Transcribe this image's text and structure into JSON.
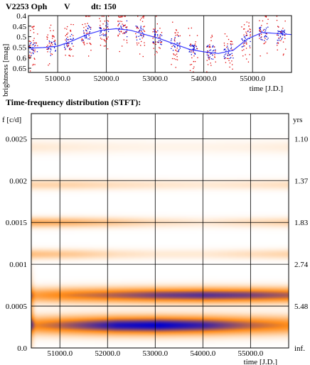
{
  "chart_data": [
    {
      "type": "scatter",
      "title": {
        "star": "V2253 Oph",
        "band": "V",
        "dt_label": "dt: 150"
      },
      "xlabel": "time [J.D.]",
      "ylabel": "brightness [mag]",
      "xlim": [
        50400,
        55800
      ],
      "ylim": [
        0.4,
        0.67
      ],
      "y_inverted": false,
      "x_ticks": [
        51000,
        52000,
        53000,
        54000,
        55000
      ],
      "x_tick_labels": [
        "51000.0",
        "52000.0",
        "53000.0",
        "54000.0",
        "55000.0"
      ],
      "y_ticks": [
        0.4,
        0.45,
        0.5,
        0.55,
        0.6,
        0.65
      ],
      "y_tick_labels": [
        "0.4",
        "0.45",
        "0.5",
        "0.55",
        "0.6",
        "0.65"
      ],
      "grid": "vertical",
      "series": [
        {
          "color": "#e00000",
          "style": "points"
        },
        {
          "color": "#0000cc",
          "style": "points"
        },
        {
          "color": "#3a3aff",
          "style": "line",
          "x": [
            50400,
            50700,
            51000,
            51300,
            51600,
            51900,
            52200,
            52500,
            52800,
            53100,
            53400,
            53700,
            54000,
            54300,
            54600,
            54900,
            55200,
            55500,
            55800
          ],
          "y": [
            0.555,
            0.552,
            0.545,
            0.52,
            0.49,
            0.47,
            0.462,
            0.47,
            0.49,
            0.51,
            0.535,
            0.56,
            0.572,
            0.58,
            0.565,
            0.51,
            0.48,
            0.485,
            0.49
          ]
        }
      ]
    },
    {
      "type": "heatmap",
      "title": "Time-frequency distribution (STFT):",
      "xlabel": "time [J.D.]",
      "ylabel": "f [c/d]",
      "ylabel_right": "yrs",
      "xlim": [
        50400,
        55800
      ],
      "ylim": [
        0,
        0.0028
      ],
      "x_ticks": [
        51000,
        52000,
        53000,
        54000,
        55000
      ],
      "x_tick_labels": [
        "51000.0",
        "52000.0",
        "53000.0",
        "54000.0",
        "55000.0"
      ],
      "y_ticks": [
        0,
        0.0005,
        0.001,
        0.0015,
        0.002,
        0.0025
      ],
      "y_tick_labels": [
        "0.0",
        "0.0005",
        "0.001",
        "0.0015",
        "0.002",
        "0.0025"
      ],
      "right_ticks": [
        {
          "f": 0.0025,
          "label": "1.10"
        },
        {
          "f": 0.002,
          "label": "1.37"
        },
        {
          "f": 0.0015,
          "label": "1.83"
        },
        {
          "f": 0.001,
          "label": "2.74"
        },
        {
          "f": 0.0005,
          "label": "5.48"
        },
        {
          "f": 0.0,
          "label": "inf."
        }
      ],
      "grid": "both",
      "colors": {
        "low": "#ffffff",
        "mid": "#ff8c1a",
        "high": "#0000d0"
      },
      "bands": [
        {
          "f": 0.00027,
          "width": 0.00011,
          "amp": [
            0.55,
            0.75,
            0.95,
            1.0,
            0.9,
            0.7,
            0.55
          ]
        },
        {
          "f": 0.00063,
          "width": 9e-05,
          "amp": [
            0.45,
            0.6,
            0.7,
            0.8,
            0.85,
            0.8,
            0.7
          ]
        },
        {
          "f": 0.00112,
          "width": 6e-05,
          "amp": [
            0.3,
            0.25,
            0.15,
            0.1,
            0.1,
            0.15,
            0.2
          ]
        },
        {
          "f": 0.0015,
          "width": 6e-05,
          "amp": [
            0.4,
            0.35,
            0.25,
            0.15,
            0.1,
            0.15,
            0.2
          ]
        },
        {
          "f": 0.00195,
          "width": 6e-05,
          "amp": [
            0.2,
            0.2,
            0.15,
            0.12,
            0.1,
            0.12,
            0.15
          ]
        },
        {
          "f": 0.0024,
          "width": 8e-05,
          "amp": [
            0.1,
            0.08,
            0.06,
            0.05,
            0.05,
            0.06,
            0.08
          ]
        }
      ]
    }
  ]
}
